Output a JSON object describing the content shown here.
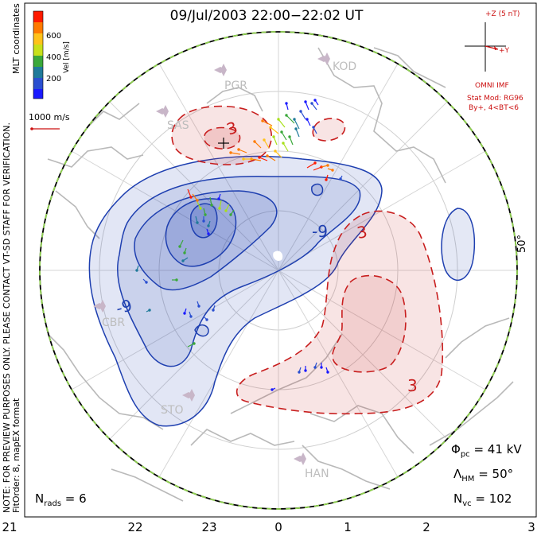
{
  "title": "09/Jul/2003 22:00−22:02 UT",
  "colorbar": {
    "label": "Vel [m/s]",
    "ticks": [
      "600",
      "400",
      "200"
    ],
    "colors": [
      "#ff1a00",
      "#ff7a00",
      "#ffc21a",
      "#a8e01a",
      "#3aa83a",
      "#1f7a9a",
      "#2a4fd0",
      "#1a1aff"
    ]
  },
  "coord_label": "MLT coordinates",
  "reference_vector": {
    "label": "1000 m/s",
    "color": "#cc1111"
  },
  "imf": {
    "z_label": "+Z (5 nT)",
    "y_label": "+Y",
    "source": "OMNI IMF",
    "model": "Stat Mod: RG96",
    "condition": "By+, 4<BT<6",
    "color": "#cc1111"
  },
  "side_text": {
    "preview_note": "NOTE: FOR PREVIEW PURPOSES ONLY. PLEASE CONTACT VT-SD STAFF FOR VERIFICATION.",
    "fit_order": "FitOrder: 8, mapEX format"
  },
  "stats": {
    "phi_pc": "Φ",
    "phi_pc_sub": "pc",
    "phi_pc_value": " = 41 kV",
    "lambda_hm": "Λ",
    "lambda_hm_sub": "HM",
    "lambda_hm_value": " = 50°",
    "n_vc": "N",
    "n_vc_sub": "vc",
    "n_vc_value": " = 102",
    "n_rads": "N",
    "n_rads_sub": "rads",
    "n_rads_value": " = 6"
  },
  "mlt_ticks": [
    "21",
    "22",
    "23",
    "0",
    "1",
    "2",
    "3"
  ],
  "latitude_label": "50°",
  "stations": [
    "KOD",
    "PGR",
    "SAS",
    "CBR",
    "STO",
    "HAN"
  ],
  "contour_labels": {
    "neg_left": "-9",
    "neg_right": "-9",
    "pos_top": "3",
    "pos_right": "3",
    "pos_bottom": "3"
  },
  "colors": {
    "negative_cell": "#1e3fb0",
    "positive_cell": "#c81e1e",
    "land": "#b9b9b9",
    "boundary": "#8fd14f"
  }
}
